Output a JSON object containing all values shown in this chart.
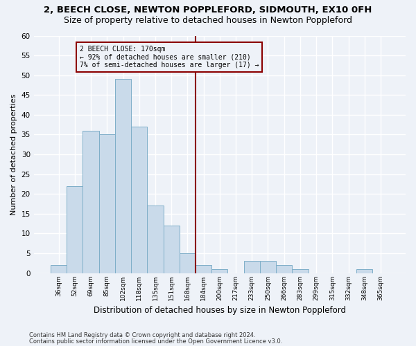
{
  "title1": "2, BEECH CLOSE, NEWTON POPPLEFORD, SIDMOUTH, EX10 0FH",
  "title2": "Size of property relative to detached houses in Newton Poppleford",
  "xlabel": "Distribution of detached houses by size in Newton Poppleford",
  "ylabel": "Number of detached properties",
  "bin_labels": [
    "36sqm",
    "52sqm",
    "69sqm",
    "85sqm",
    "102sqm",
    "118sqm",
    "135sqm",
    "151sqm",
    "168sqm",
    "184sqm",
    "200sqm",
    "217sqm",
    "233sqm",
    "250sqm",
    "266sqm",
    "283sqm",
    "299sqm",
    "315sqm",
    "332sqm",
    "348sqm",
    "365sqm"
  ],
  "bar_values": [
    2,
    22,
    36,
    35,
    49,
    37,
    17,
    12,
    5,
    2,
    1,
    0,
    3,
    3,
    2,
    1,
    0,
    0,
    0,
    1,
    0
  ],
  "bar_color": "#c9daea",
  "bar_edge_color": "#7eaec8",
  "vline_x": 8.5,
  "vline_color": "#8b0000",
  "annotation_text": "2 BEECH CLOSE: 170sqm\n← 92% of detached houses are smaller (210)\n7% of semi-detached houses are larger (17) →",
  "annotation_box_color": "#8b0000",
  "ylim": [
    0,
    60
  ],
  "yticks": [
    0,
    5,
    10,
    15,
    20,
    25,
    30,
    35,
    40,
    45,
    50,
    55,
    60
  ],
  "footer1": "Contains HM Land Registry data © Crown copyright and database right 2024.",
  "footer2": "Contains public sector information licensed under the Open Government Licence v3.0.",
  "bg_color": "#eef2f8",
  "grid_color": "#ffffff",
  "title1_fontsize": 9.5,
  "title2_fontsize": 9,
  "xlabel_fontsize": 8.5,
  "ylabel_fontsize": 8,
  "footer_fontsize": 6
}
